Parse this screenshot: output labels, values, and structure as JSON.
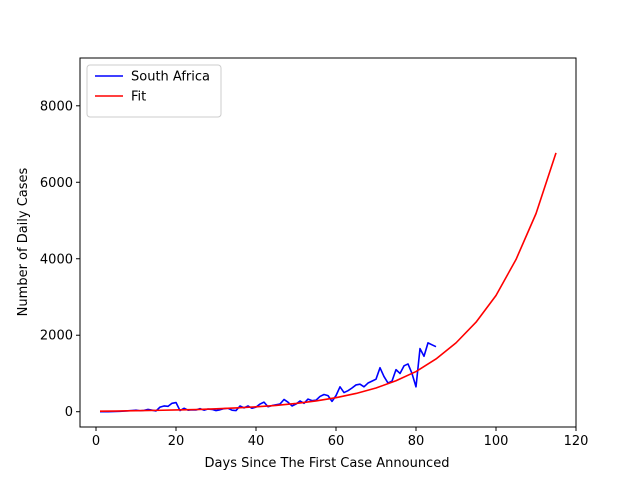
{
  "chart_data": {
    "type": "line",
    "xlabel": "Days Since The First Case Announced",
    "ylabel": "Number of Daily Cases",
    "xlim": [
      -4,
      120
    ],
    "ylim": [
      -400,
      9250
    ],
    "xticks": [
      0,
      20,
      40,
      60,
      80,
      100,
      120
    ],
    "yticks": [
      0,
      2000,
      4000,
      6000,
      8000
    ],
    "grid": false,
    "legend_position": "upper-left",
    "series": [
      {
        "name": "South Africa",
        "color": "#0000ff",
        "x": [
          1,
          2,
          3,
          4,
          5,
          6,
          7,
          8,
          9,
          10,
          11,
          12,
          13,
          14,
          15,
          16,
          17,
          18,
          19,
          20,
          21,
          22,
          23,
          24,
          25,
          26,
          27,
          28,
          29,
          30,
          31,
          32,
          33,
          34,
          35,
          36,
          37,
          38,
          39,
          40,
          41,
          42,
          43,
          44,
          45,
          46,
          47,
          48,
          49,
          50,
          51,
          52,
          53,
          54,
          55,
          56,
          57,
          58,
          59,
          60,
          61,
          62,
          63,
          64,
          65,
          66,
          67,
          68,
          69,
          70,
          71,
          72,
          73,
          74,
          75,
          76,
          77,
          78,
          79,
          80,
          81,
          82,
          83,
          84,
          85
        ],
        "y": [
          0,
          0,
          0,
          3,
          6,
          10,
          15,
          22,
          30,
          40,
          25,
          35,
          60,
          40,
          20,
          120,
          150,
          140,
          220,
          240,
          30,
          90,
          40,
          50,
          45,
          80,
          40,
          70,
          60,
          30,
          50,
          80,
          90,
          40,
          30,
          150,
          100,
          150,
          90,
          120,
          200,
          250,
          130,
          160,
          180,
          200,
          320,
          250,
          150,
          200,
          280,
          220,
          330,
          290,
          300,
          400,
          450,
          420,
          270,
          420,
          650,
          500,
          550,
          620,
          700,
          720,
          650,
          750,
          800,
          850,
          1150,
          920,
          750,
          800,
          1100,
          1000,
          1200,
          1250,
          1000,
          650,
          1650,
          1450,
          1800,
          1750,
          1700
        ]
      },
      {
        "name": "Fit",
        "color": "#ff0000",
        "model": "exponential",
        "x": [
          1,
          5,
          10,
          15,
          20,
          25,
          30,
          35,
          40,
          45,
          50,
          55,
          60,
          65,
          70,
          75,
          80,
          85,
          90,
          95,
          100,
          105,
          110,
          115
        ],
        "y": [
          14,
          18,
          27,
          35,
          45,
          57,
          76,
          98,
          128,
          165,
          216,
          282,
          367,
          477,
          620,
          810,
          1050,
          1380,
          1800,
          2340,
          3040,
          3980,
          5180,
          6770
        ]
      }
    ]
  }
}
